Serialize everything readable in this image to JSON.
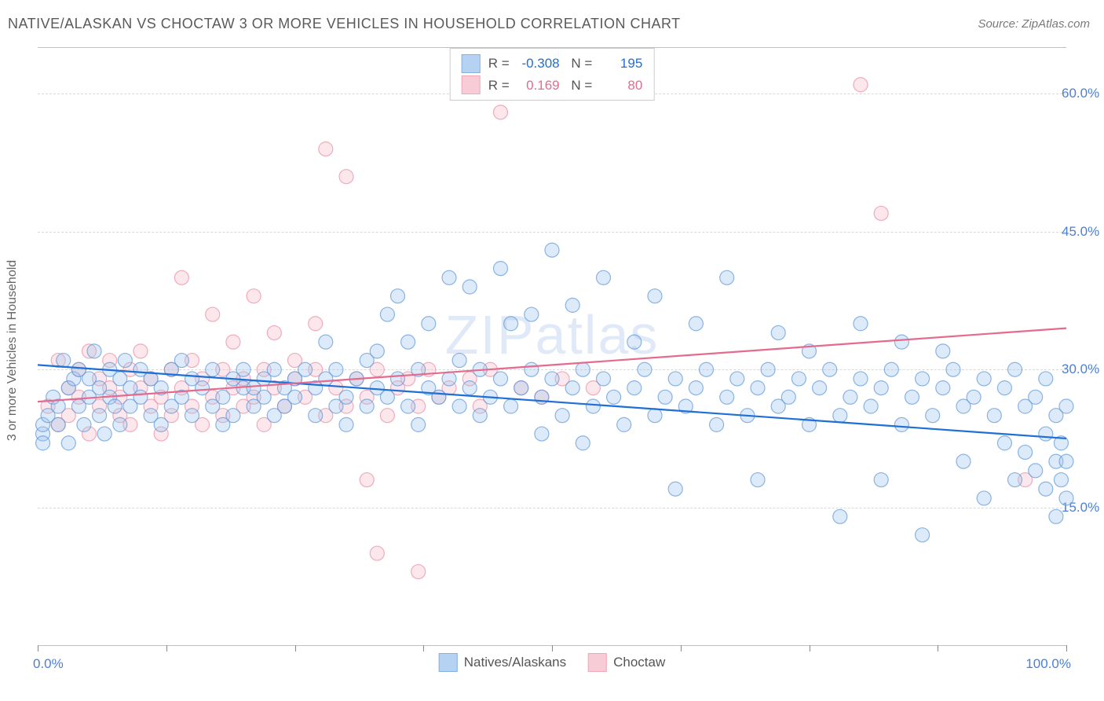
{
  "title": "NATIVE/ALASKAN VS CHOCTAW 3 OR MORE VEHICLES IN HOUSEHOLD CORRELATION CHART",
  "source": "Source: ZipAtlas.com",
  "watermark": "ZIPatlas",
  "ylabel": "3 or more Vehicles in Household",
  "chart": {
    "type": "scatter",
    "background_color": "#ffffff",
    "grid_color": "#d8d8d8",
    "border_color": "#c0c0c0",
    "label_fontsize": 16,
    "tick_fontsize": 17,
    "tick_color": "#4a80d6",
    "xlim": [
      0,
      100
    ],
    "ylim": [
      0,
      65
    ],
    "ytick_values": [
      15,
      30,
      45,
      60
    ],
    "ytick_labels": [
      "15.0%",
      "30.0%",
      "45.0%",
      "60.0%"
    ],
    "xtick_values": [
      0,
      12.5,
      25,
      37.5,
      50,
      62.5,
      75,
      87.5,
      100
    ],
    "xtick_show_labels": {
      "0": "0.0%",
      "100": "100.0%"
    },
    "marker_radius": 9,
    "marker_fill_opacity": 0.35,
    "marker_stroke_opacity": 0.7,
    "marker_stroke_width": 1.2,
    "trendline_width": 2.2,
    "series": [
      {
        "id": "natives",
        "label": "Natives/Alaskans",
        "color_fill": "#9ec3ee",
        "color_stroke": "#5e97d8",
        "trend_color": "#1e6fd6",
        "R": "-0.308",
        "N": "195",
        "trend": {
          "x1": 0,
          "y1": 30.5,
          "x2": 100,
          "y2": 22.5
        },
        "points": [
          [
            0.5,
            23
          ],
          [
            0.5,
            22
          ],
          [
            0.5,
            24
          ],
          [
            1,
            25
          ],
          [
            1.5,
            27
          ],
          [
            2,
            26
          ],
          [
            2,
            24
          ],
          [
            2.5,
            31
          ],
          [
            3,
            28
          ],
          [
            3,
            22
          ],
          [
            3.5,
            29
          ],
          [
            4,
            30
          ],
          [
            4,
            26
          ],
          [
            4.5,
            24
          ],
          [
            5,
            27
          ],
          [
            5,
            29
          ],
          [
            5.5,
            32
          ],
          [
            6,
            28
          ],
          [
            6,
            25
          ],
          [
            6.5,
            23
          ],
          [
            7,
            30
          ],
          [
            7,
            27
          ],
          [
            7.5,
            26
          ],
          [
            8,
            29
          ],
          [
            8,
            24
          ],
          [
            8.5,
            31
          ],
          [
            9,
            28
          ],
          [
            9,
            26
          ],
          [
            10,
            27
          ],
          [
            10,
            30
          ],
          [
            11,
            25
          ],
          [
            11,
            29
          ],
          [
            12,
            24
          ],
          [
            12,
            28
          ],
          [
            13,
            30
          ],
          [
            13,
            26
          ],
          [
            14,
            27
          ],
          [
            14,
            31
          ],
          [
            15,
            25
          ],
          [
            15,
            29
          ],
          [
            16,
            28
          ],
          [
            17,
            26
          ],
          [
            17,
            30
          ],
          [
            18,
            27
          ],
          [
            18,
            24
          ],
          [
            19,
            29
          ],
          [
            19,
            25
          ],
          [
            20,
            28
          ],
          [
            20,
            30
          ],
          [
            21,
            26
          ],
          [
            21,
            28
          ],
          [
            22,
            29
          ],
          [
            22,
            27
          ],
          [
            23,
            25
          ],
          [
            23,
            30
          ],
          [
            24,
            28
          ],
          [
            24,
            26
          ],
          [
            25,
            29
          ],
          [
            25,
            27
          ],
          [
            26,
            30
          ],
          [
            27,
            25
          ],
          [
            27,
            28
          ],
          [
            28,
            29
          ],
          [
            28,
            33
          ],
          [
            29,
            26
          ],
          [
            29,
            30
          ],
          [
            30,
            27
          ],
          [
            30,
            24
          ],
          [
            31,
            29
          ],
          [
            32,
            26
          ],
          [
            32,
            31
          ],
          [
            33,
            28
          ],
          [
            33,
            32
          ],
          [
            34,
            27
          ],
          [
            34,
            36
          ],
          [
            35,
            29
          ],
          [
            35,
            38
          ],
          [
            36,
            26
          ],
          [
            36,
            33
          ],
          [
            37,
            30
          ],
          [
            37,
            24
          ],
          [
            38,
            28
          ],
          [
            38,
            35
          ],
          [
            39,
            27
          ],
          [
            40,
            29
          ],
          [
            40,
            40
          ],
          [
            41,
            26
          ],
          [
            41,
            31
          ],
          [
            42,
            28
          ],
          [
            42,
            39
          ],
          [
            43,
            30
          ],
          [
            43,
            25
          ],
          [
            44,
            27
          ],
          [
            45,
            29
          ],
          [
            45,
            41
          ],
          [
            46,
            26
          ],
          [
            46,
            35
          ],
          [
            47,
            28
          ],
          [
            48,
            30
          ],
          [
            48,
            36
          ],
          [
            49,
            27
          ],
          [
            49,
            23
          ],
          [
            50,
            29
          ],
          [
            50,
            43
          ],
          [
            51,
            25
          ],
          [
            52,
            28
          ],
          [
            52,
            37
          ],
          [
            53,
            30
          ],
          [
            53,
            22
          ],
          [
            54,
            26
          ],
          [
            55,
            29
          ],
          [
            55,
            40
          ],
          [
            56,
            27
          ],
          [
            57,
            24
          ],
          [
            58,
            28
          ],
          [
            58,
            33
          ],
          [
            59,
            30
          ],
          [
            60,
            25
          ],
          [
            60,
            38
          ],
          [
            61,
            27
          ],
          [
            62,
            29
          ],
          [
            62,
            17
          ],
          [
            63,
            26
          ],
          [
            64,
            28
          ],
          [
            64,
            35
          ],
          [
            65,
            30
          ],
          [
            66,
            24
          ],
          [
            67,
            27
          ],
          [
            67,
            40
          ],
          [
            68,
            29
          ],
          [
            69,
            25
          ],
          [
            70,
            28
          ],
          [
            70,
            18
          ],
          [
            71,
            30
          ],
          [
            72,
            26
          ],
          [
            72,
            34
          ],
          [
            73,
            27
          ],
          [
            74,
            29
          ],
          [
            75,
            24
          ],
          [
            75,
            32
          ],
          [
            76,
            28
          ],
          [
            77,
            30
          ],
          [
            78,
            25
          ],
          [
            78,
            14
          ],
          [
            79,
            27
          ],
          [
            80,
            29
          ],
          [
            80,
            35
          ],
          [
            81,
            26
          ],
          [
            82,
            28
          ],
          [
            82,
            18
          ],
          [
            83,
            30
          ],
          [
            84,
            24
          ],
          [
            84,
            33
          ],
          [
            85,
            27
          ],
          [
            86,
            29
          ],
          [
            86,
            12
          ],
          [
            87,
            25
          ],
          [
            88,
            28
          ],
          [
            88,
            32
          ],
          [
            89,
            30
          ],
          [
            90,
            26
          ],
          [
            90,
            20
          ],
          [
            91,
            27
          ],
          [
            92,
            29
          ],
          [
            92,
            16
          ],
          [
            93,
            25
          ],
          [
            94,
            28
          ],
          [
            94,
            22
          ],
          [
            95,
            30
          ],
          [
            95,
            18
          ],
          [
            96,
            26
          ],
          [
            96,
            21
          ],
          [
            97,
            27
          ],
          [
            97,
            19
          ],
          [
            98,
            29
          ],
          [
            98,
            17
          ],
          [
            98,
            23
          ],
          [
            99,
            25
          ],
          [
            99,
            20
          ],
          [
            99,
            14
          ],
          [
            99.5,
            22
          ],
          [
            99.5,
            18
          ],
          [
            100,
            26
          ],
          [
            100,
            20
          ],
          [
            100,
            16
          ]
        ]
      },
      {
        "id": "choctaw",
        "label": "Choctaw",
        "color_fill": "#f5bcc9",
        "color_stroke": "#e88da3",
        "trend_color": "#e36b8d",
        "R": "0.169",
        "N": "80",
        "trend": {
          "x1": 0,
          "y1": 26.5,
          "x2": 100,
          "y2": 34.5
        },
        "points": [
          [
            1,
            26
          ],
          [
            2,
            24
          ],
          [
            2,
            31
          ],
          [
            3,
            28
          ],
          [
            3,
            25
          ],
          [
            4,
            30
          ],
          [
            4,
            27
          ],
          [
            5,
            32
          ],
          [
            5,
            23
          ],
          [
            6,
            29
          ],
          [
            6,
            26
          ],
          [
            7,
            28
          ],
          [
            7,
            31
          ],
          [
            8,
            25
          ],
          [
            8,
            27
          ],
          [
            9,
            30
          ],
          [
            9,
            24
          ],
          [
            10,
            28
          ],
          [
            10,
            32
          ],
          [
            11,
            26
          ],
          [
            11,
            29
          ],
          [
            12,
            27
          ],
          [
            12,
            23
          ],
          [
            13,
            30
          ],
          [
            13,
            25
          ],
          [
            14,
            28
          ],
          [
            14,
            40
          ],
          [
            15,
            26
          ],
          [
            15,
            31
          ],
          [
            16,
            29
          ],
          [
            16,
            24
          ],
          [
            17,
            27
          ],
          [
            17,
            36
          ],
          [
            18,
            30
          ],
          [
            18,
            25
          ],
          [
            19,
            28
          ],
          [
            19,
            33
          ],
          [
            20,
            26
          ],
          [
            20,
            29
          ],
          [
            21,
            27
          ],
          [
            21,
            38
          ],
          [
            22,
            30
          ],
          [
            22,
            24
          ],
          [
            23,
            28
          ],
          [
            23,
            34
          ],
          [
            24,
            26
          ],
          [
            25,
            29
          ],
          [
            25,
            31
          ],
          [
            26,
            27
          ],
          [
            27,
            30
          ],
          [
            27,
            35
          ],
          [
            28,
            25
          ],
          [
            28,
            54
          ],
          [
            29,
            28
          ],
          [
            30,
            26
          ],
          [
            30,
            51
          ],
          [
            31,
            29
          ],
          [
            32,
            27
          ],
          [
            32,
            18
          ],
          [
            33,
            30
          ],
          [
            33,
            10
          ],
          [
            34,
            25
          ],
          [
            35,
            28
          ],
          [
            36,
            29
          ],
          [
            37,
            26
          ],
          [
            37,
            8
          ],
          [
            38,
            30
          ],
          [
            39,
            27
          ],
          [
            40,
            28
          ],
          [
            42,
            29
          ],
          [
            43,
            26
          ],
          [
            44,
            30
          ],
          [
            45,
            58
          ],
          [
            47,
            28
          ],
          [
            49,
            27
          ],
          [
            51,
            29
          ],
          [
            54,
            28
          ],
          [
            80,
            61
          ],
          [
            82,
            47
          ],
          [
            96,
            18
          ]
        ]
      }
    ]
  }
}
